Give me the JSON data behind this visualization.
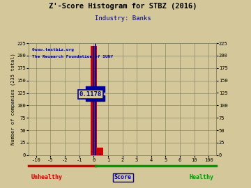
{
  "title": "Z'-Score Histogram for STBZ (2016)",
  "subtitle": "Industry: Banks",
  "xlabel_score": "Score",
  "xlabel_unhealthy": "Unhealthy",
  "xlabel_healthy": "Healthy",
  "ylabel_left": "Number of companies (235 total)",
  "watermark_line1": "©www.textbiz.org",
  "watermark_line2": "The Research Foundation of SUNY",
  "annotation": "0.1178",
  "x_tick_values": [
    -10,
    -5,
    -2,
    -1,
    0,
    1,
    2,
    3,
    4,
    5,
    6,
    10,
    100
  ],
  "x_tick_labels": [
    "-10",
    "-5",
    "-2",
    "-1",
    "0",
    "1",
    "2",
    "3",
    "4",
    "5",
    "6",
    "10",
    "100"
  ],
  "ylim": [
    0,
    225
  ],
  "yticks": [
    0,
    25,
    50,
    75,
    100,
    125,
    150,
    175,
    200,
    225
  ],
  "red_bar_height": 220,
  "red_bar2_height": 15,
  "stbz_score": 0.1178,
  "crosshair_y": 110,
  "bg_color": "#d4c89a",
  "grid_color": "#888866",
  "bar_red": "#cc0000",
  "bar_blue": "#000099",
  "title_color": "#000000",
  "subtitle_color": "#000066",
  "watermark_color": "#000099",
  "unhealthy_color": "#cc0000",
  "healthy_color": "#009900",
  "score_color": "#000099",
  "annot_color": "#000099",
  "annot_bg": "#d4c89a",
  "bottom_line_red": "#cc0000",
  "bottom_line_green": "#009900"
}
